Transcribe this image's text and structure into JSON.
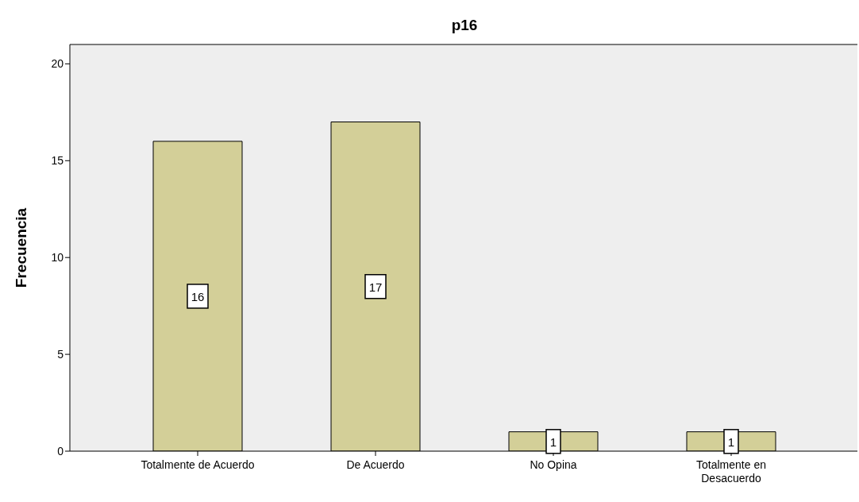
{
  "chart_data": {
    "type": "bar",
    "title": "p16",
    "ylabel": "Frecuencia",
    "categories": [
      "Totalmente de Acuerdo",
      "De Acuerdo",
      "No Opina",
      "Totalmente en Desacuerdo"
    ],
    "values": [
      16,
      17,
      1,
      1
    ],
    "color": "#d3cf98",
    "ylim": [
      0,
      21
    ],
    "yticks": [
      0,
      5,
      10,
      15,
      20
    ],
    "grid": false,
    "legend": false,
    "data_labels": true
  }
}
